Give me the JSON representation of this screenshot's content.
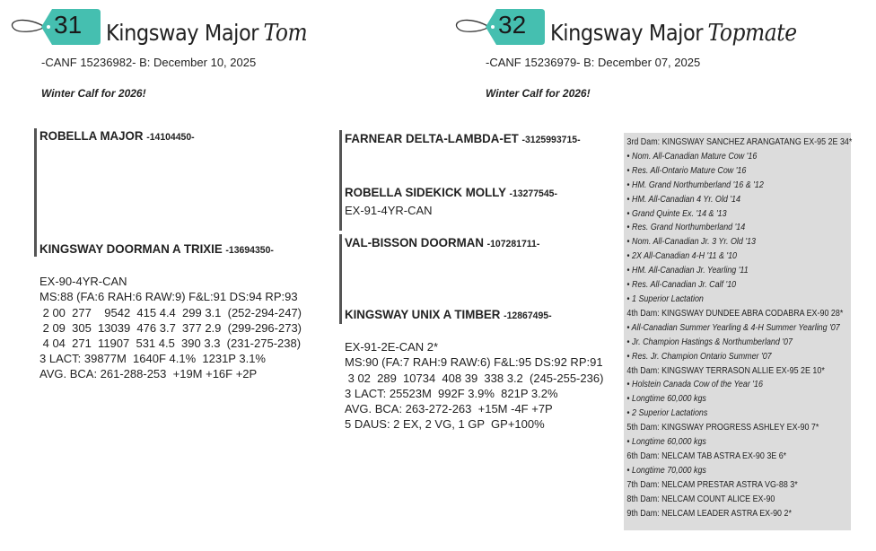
{
  "lots": [
    {
      "number": "31",
      "name": "Kingsway Major",
      "name_script": "Tom",
      "reg": "-CANF 15236982-  B: December 10, 2025",
      "note": "Winter Calf for 2026!",
      "sire": {
        "name": "ROBELLA MAJOR",
        "reg": "-14104450-"
      },
      "dam": {
        "name": "KINGSWAY DOORMAN A TRIXIE",
        "reg": "-13694350-",
        "lines": [
          "EX-90-4YR-CAN",
          "MS:88 (FA:6 RAH:6 RAW:9) F&L:91 DS:94 RP:93",
          " 2 00  277    9542  415 4.4  299 3.1  (252-294-247)",
          " 2 09  305  13039  476 3.7  377 2.9  (299-296-273)",
          " 4 04  271  11907  531 4.5  390 3.3  (231-275-238)",
          "3 LACT: 39877M  1640F 4.1%  1231P 3.1%",
          "AVG. BCA: 261-288-253  +19M +16F +2P"
        ]
      }
    },
    {
      "number": "32",
      "name": "Kingsway Major",
      "name_script": "Topmate",
      "reg": "-CANF 15236979-  B: December 07, 2025",
      "note": "Winter Calf for 2026!",
      "sire": {
        "name": "FARNEAR DELTA-LAMBDA-ET",
        "reg": "-3125993715-"
      },
      "sire_dam": {
        "name": "ROBELLA SIDEKICK MOLLY",
        "reg": "-13277545-",
        "lines": [
          "EX-91-4YR-CAN"
        ]
      },
      "dam_sire": {
        "name": "VAL-BISSON DOORMAN",
        "reg": "-107281711-"
      },
      "dam": {
        "name": "KINGSWAY UNIX A TIMBER",
        "reg": "-12867495-",
        "lines": [
          "EX-91-2E-CAN 2*",
          "MS:90 (FA:7 RAH:9 RAW:6) F&L:95 DS:92 RP:91",
          " 3 02  289  10734  408 39  338 3.2  (245-255-236)",
          "3 LACT: 25523M  992F 3.9%  821P 3.2%",
          "AVG. BCA: 263-272-263  +15M -4F +7P",
          "5 DAUS: 2 EX, 2 VG, 1 GP  GP+100%"
        ]
      },
      "pedigree_box": [
        {
          "t": "3rd Dam: KINGSWAY SANCHEZ ARANGATANG EX-95 2E 34*",
          "b": false
        },
        {
          "t": "• Nom. All-Canadian Mature Cow '16",
          "b": true
        },
        {
          "t": "• Res. All-Ontario Mature Cow '16",
          "b": true
        },
        {
          "t": "• HM. Grand Northumberland '16 & '12",
          "b": true
        },
        {
          "t": "• HM. All-Canadian 4 Yr. Old '14",
          "b": true
        },
        {
          "t": "• Grand Quinte Ex. '14 & '13",
          "b": true
        },
        {
          "t": "• Res. Grand Northumberland '14",
          "b": true
        },
        {
          "t": "• Nom. All-Canadian Jr. 3 Yr. Old '13",
          "b": true
        },
        {
          "t": "• 2X All-Canadian 4-H  '11 & '10",
          "b": true
        },
        {
          "t": "• HM. All-Canadian Jr. Yearling '11",
          "b": true
        },
        {
          "t": "• Res. All-Canadian Jr. Calf '10",
          "b": true
        },
        {
          "t": "• 1 Superior Lactation",
          "b": true
        },
        {
          "t": "4th Dam: KINGSWAY DUNDEE ABRA CODABRA EX-90 28*",
          "b": false
        },
        {
          "t": "• All-Canadian Summer Yearling & 4-H Summer Yearling '07",
          "b": true
        },
        {
          "t": "• Jr. Champion Hastings & Northumberland '07",
          "b": true
        },
        {
          "t": "• Res. Jr. Champion Ontario Summer '07",
          "b": true
        },
        {
          "t": "4th Dam: KINGSWAY TERRASON ALLIE EX-95 2E 10*",
          "b": false
        },
        {
          "t": "• Holstein Canada Cow of the Year '16",
          "b": true
        },
        {
          "t": "• Longtime 60,000 kgs",
          "b": true
        },
        {
          "t": "• 2 Superior Lactations",
          "b": true
        },
        {
          "t": "5th Dam: KINGSWAY PROGRESS ASHLEY EX-90 7*",
          "b": false
        },
        {
          "t": "• Longtime 60,000 kgs",
          "b": true
        },
        {
          "t": "6th Dam: NELCAM TAB ASTRA EX-90 3E 6*",
          "b": false
        },
        {
          "t": "• Longtime 70,000 kgs",
          "b": true
        },
        {
          "t": "7th Dam: NELCAM PRESTAR ASTRA VG-88 3*",
          "b": false
        },
        {
          "t": "8th Dam: NELCAM COUNT ALICE EX-90",
          "b": false
        },
        {
          "t": "9th Dam: NELCAM LEADER ASTRA EX-90 2*",
          "b": false
        }
      ]
    }
  ],
  "colors": {
    "tag": "#45bfb0",
    "box": "#dcdcdc"
  }
}
